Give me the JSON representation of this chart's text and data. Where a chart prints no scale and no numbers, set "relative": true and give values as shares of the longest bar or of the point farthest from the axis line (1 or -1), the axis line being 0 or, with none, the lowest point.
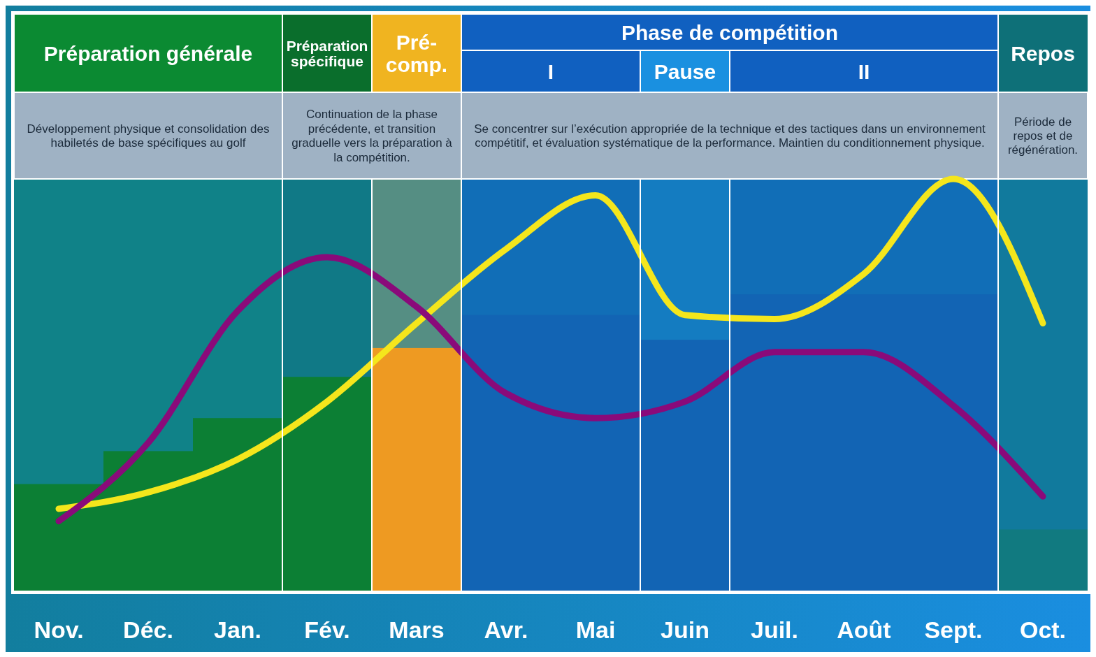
{
  "chart_data": {
    "type": "bar",
    "relative": true,
    "categories": [
      "Nov.",
      "Déc.",
      "Jan.",
      "Fév.",
      "Mars",
      "Avr.",
      "Mai",
      "Juin",
      "Juil.",
      "Août",
      "Sept.",
      "Oct."
    ],
    "series": [
      {
        "values": [
          0.26,
          0.34,
          0.42,
          0.52,
          0.59,
          0.67,
          0.67,
          0.61,
          0.72,
          0.72,
          0.72,
          0.15
        ],
        "colors": [
          "#0c7f34",
          "#0c7f34",
          "#0c7f34",
          "#0c7f34",
          "#ee9a22",
          "#1264b4",
          "#1264b4",
          "#1264b4",
          "#1264b4",
          "#1264b4",
          "#1264b4",
          "#117a80"
        ]
      },
      {
        "type": "line",
        "color": "#f5e61c",
        "values": [
          0.2,
          0.24,
          0.32,
          0.46,
          0.65,
          0.83,
          0.96,
          0.67,
          0.66,
          0.77,
          1,
          0.65
        ]
      },
      {
        "type": "line",
        "color": "#8a0a7a",
        "values": [
          0.17,
          0.36,
          0.68,
          0.81,
          0.69,
          0.48,
          0.42,
          0.46,
          0.58,
          0.58,
          0.45,
          0.23
        ]
      }
    ],
    "bands": [
      {
        "axis": "x",
        "from": "Nov.",
        "to": "Jan.",
        "label": "Préparation générale",
        "color": "#0b8a32"
      },
      {
        "axis": "x",
        "from": "Fév.",
        "to": "Fév.",
        "label": "Préparation spécifique",
        "color": "#0a6e2c"
      },
      {
        "axis": "x",
        "from": "Mars",
        "to": "Mars",
        "label": "Pré-comp.",
        "color": "#f0b420"
      },
      {
        "axis": "x",
        "from": "Avr.",
        "to": "Sept.",
        "label": "Phase de compétition",
        "color": "#1060c0"
      },
      {
        "axis": "x",
        "from": "Avr.",
        "to": "Mai",
        "label": "I",
        "color": "#1060c0"
      },
      {
        "axis": "x",
        "from": "Juin",
        "to": "Juin",
        "label": "Pause",
        "color": "#1a90e0"
      },
      {
        "axis": "x",
        "from": "Juil.",
        "to": "Sept.",
        "label": "II",
        "color": "#1060c0"
      },
      {
        "axis": "x",
        "from": "Oct.",
        "to": "Oct.",
        "label": "Repos",
        "color": "#0e7078"
      }
    ],
    "annotations": [
      "Développement physique et consolidation des habiletés de base spécifiques au golf",
      "Continuation de la phase précédente, et transition graduelle vers la préparation à la compétition.",
      "Se concentrer sur l’exécution appropriée de la technique et des tactiques dans un environnement compétitif, et évaluation systématique de la performance. Maintien du conditionnement physique.",
      "Période de repos et de régénération."
    ]
  }
}
